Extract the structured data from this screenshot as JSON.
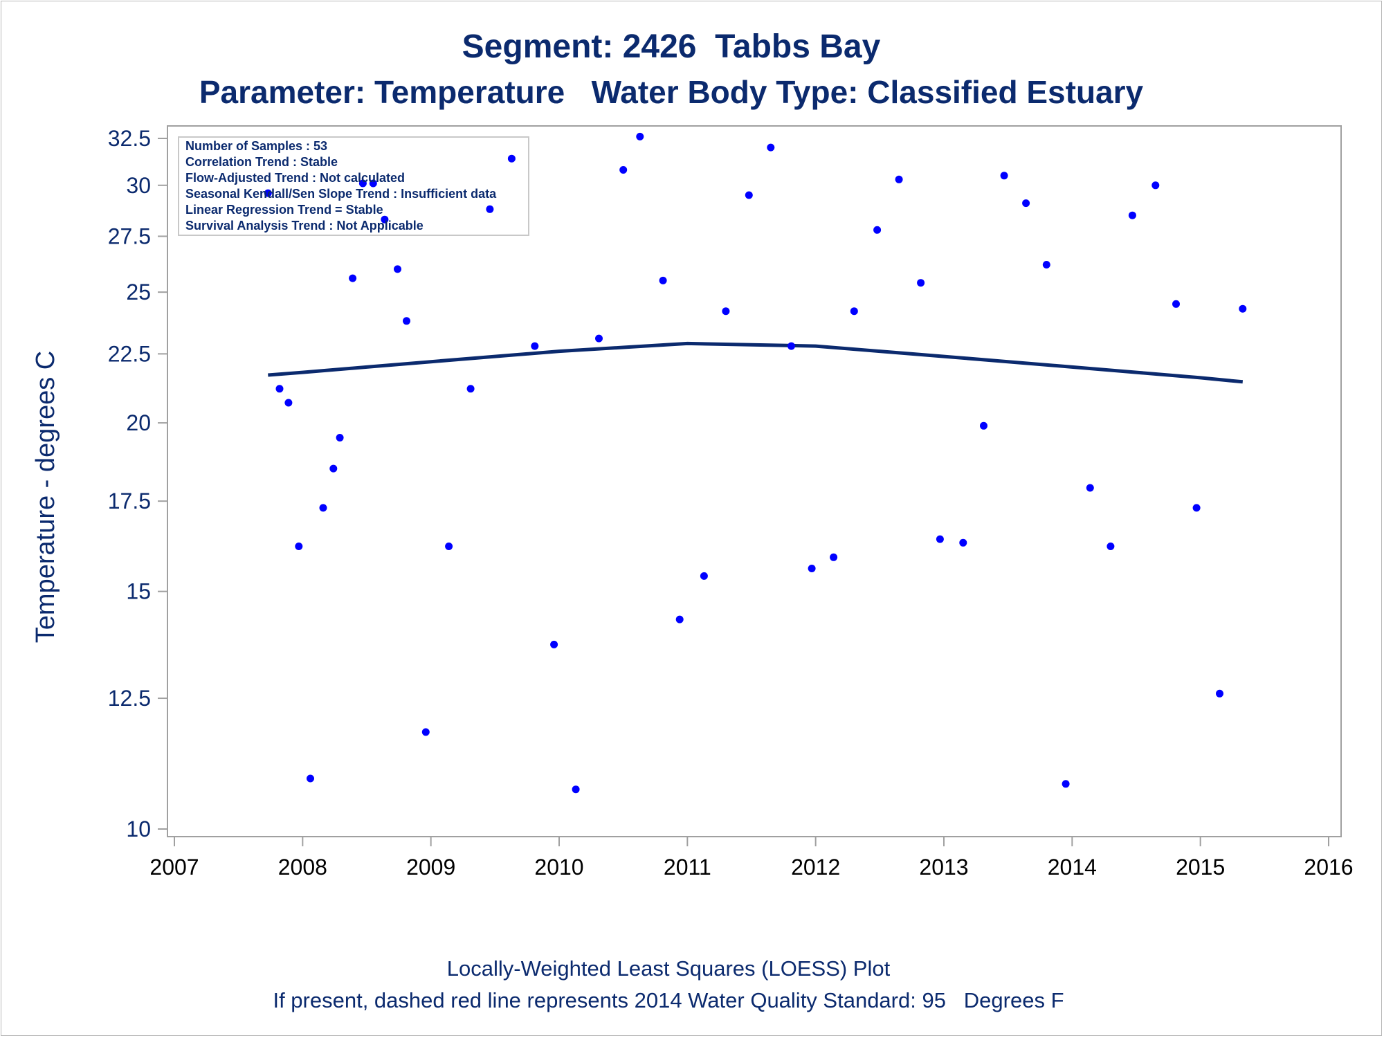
{
  "header": {
    "title_line1": "Segment: 2426  Tabbs Bay",
    "title_line2": "Parameter: Temperature   Water Body Type: Classified Estuary"
  },
  "footer": {
    "line1": "Locally-Weighted Least Squares (LOESS) Plot",
    "line2": "If present, dashed red line represents 2014 Water Quality Standard: 95   Degrees F"
  },
  "stats_box": {
    "lines": [
      "Number of Samples : 53",
      "Correlation Trend : Stable",
      "Flow-Adjusted Trend : Not calculated",
      "Seasonal Kendall/Sen Slope Trend : Insufficient data",
      "Linear Regression Trend = Stable",
      "Survival Analysis Trend : Not Applicable"
    ]
  },
  "colors": {
    "text": "#0b2a6e",
    "points": "#0000ff",
    "loess_line": "#0b2a6e",
    "axis": "#a0a0a0"
  },
  "chart_data": {
    "type": "scatter",
    "ylabel": "Temperature - degrees C",
    "xlabel": "",
    "y_scale": "log",
    "xlim": [
      2007,
      2016
    ],
    "ylim": [
      10,
      32.5
    ],
    "x_ticks": [
      2007,
      2008,
      2009,
      2010,
      2011,
      2012,
      2013,
      2014,
      2015,
      2016
    ],
    "x_tick_labels": [
      "2007",
      "2008",
      "2009",
      "2010",
      "2011",
      "2012",
      "2013",
      "2014",
      "2015",
      "2016"
    ],
    "y_ticks": [
      10,
      12.5,
      15,
      17.5,
      20,
      22.5,
      25,
      27.5,
      30,
      32.5
    ],
    "y_tick_labels": [
      "10",
      "12.5",
      "15",
      "17.5",
      "20",
      "22.5",
      "25",
      "27.5",
      "30",
      "32.5"
    ],
    "legend": "none",
    "points": [
      [
        2007.73,
        29.6
      ],
      [
        2007.82,
        21.2
      ],
      [
        2007.89,
        20.7
      ],
      [
        2007.97,
        16.2
      ],
      [
        2008.06,
        10.9
      ],
      [
        2008.16,
        17.3
      ],
      [
        2008.24,
        18.5
      ],
      [
        2008.29,
        19.5
      ],
      [
        2008.39,
        25.6
      ],
      [
        2008.47,
        30.1
      ],
      [
        2008.55,
        30.1
      ],
      [
        2008.64,
        28.3
      ],
      [
        2008.74,
        26.0
      ],
      [
        2008.81,
        23.8
      ],
      [
        2008.96,
        11.8
      ],
      [
        2009.14,
        16.2
      ],
      [
        2009.31,
        21.2
      ],
      [
        2009.46,
        28.8
      ],
      [
        2009.63,
        31.4
      ],
      [
        2009.81,
        22.8
      ],
      [
        2009.96,
        13.7
      ],
      [
        2010.13,
        10.7
      ],
      [
        2010.31,
        23.1
      ],
      [
        2010.5,
        30.8
      ],
      [
        2010.63,
        32.6
      ],
      [
        2010.81,
        25.5
      ],
      [
        2010.94,
        14.3
      ],
      [
        2011.13,
        15.4
      ],
      [
        2011.3,
        24.2
      ],
      [
        2011.48,
        29.5
      ],
      [
        2011.65,
        32.0
      ],
      [
        2011.81,
        22.8
      ],
      [
        2011.97,
        15.6
      ],
      [
        2012.14,
        15.9
      ],
      [
        2012.3,
        24.2
      ],
      [
        2012.48,
        27.8
      ],
      [
        2012.65,
        30.3
      ],
      [
        2012.82,
        25.4
      ],
      [
        2012.97,
        16.4
      ],
      [
        2013.15,
        16.3
      ],
      [
        2013.31,
        19.9
      ],
      [
        2013.47,
        30.5
      ],
      [
        2013.64,
        29.1
      ],
      [
        2013.8,
        26.2
      ],
      [
        2013.95,
        10.8
      ],
      [
        2014.14,
        17.9
      ],
      [
        2014.3,
        16.2
      ],
      [
        2014.47,
        28.5
      ],
      [
        2014.65,
        30.0
      ],
      [
        2014.81,
        24.5
      ],
      [
        2014.97,
        17.3
      ],
      [
        2015.15,
        12.6
      ],
      [
        2015.33,
        24.3
      ]
    ],
    "loess": {
      "name": "LOESS",
      "x": [
        2007.73,
        2008.0,
        2008.5,
        2009.0,
        2009.5,
        2010.0,
        2010.5,
        2011.0,
        2011.5,
        2012.0,
        2012.5,
        2013.0,
        2013.5,
        2014.0,
        2014.5,
        2015.0,
        2015.33
      ],
      "y": [
        21.7,
        21.8,
        22.0,
        22.2,
        22.4,
        22.6,
        22.75,
        22.9,
        22.85,
        22.8,
        22.6,
        22.4,
        22.2,
        22.0,
        21.8,
        21.6,
        21.45
      ]
    }
  }
}
